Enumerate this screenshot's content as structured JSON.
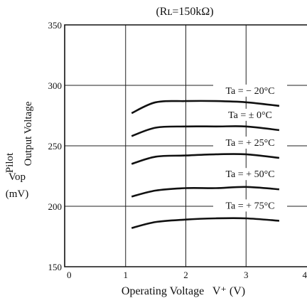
{
  "chart_data": {
    "type": "line",
    "title": "(Rʟ=150kΩ)",
    "xlabel": "Operating Voltage   V⁺ (V)",
    "ylabel_lines": [
      "Pilot",
      "Output Voltage",
      "Vop",
      "(mV)"
    ],
    "xlim": [
      0,
      4
    ],
    "ylim": [
      150,
      350
    ],
    "xticks": [
      "0",
      "1",
      "2",
      "3",
      "4"
    ],
    "yticks": [
      "150",
      "200",
      "250",
      "300",
      "350"
    ],
    "grid": true,
    "series": [
      {
        "name": "Ta = − 20°C",
        "x": [
          1.1,
          1.5,
          2.0,
          2.5,
          3.0,
          3.55
        ],
        "y": [
          277,
          286,
          287,
          287,
          286,
          283
        ]
      },
      {
        "name": "Ta = ± 0°C",
        "x": [
          1.1,
          1.5,
          2.0,
          2.5,
          3.0,
          3.55
        ],
        "y": [
          258,
          265,
          266,
          266,
          266,
          263
        ]
      },
      {
        "name": "Ta = + 25°C",
        "x": [
          1.1,
          1.5,
          2.0,
          2.5,
          3.0,
          3.55
        ],
        "y": [
          235,
          241,
          242,
          243,
          243,
          240
        ]
      },
      {
        "name": "Ta = + 50°C",
        "x": [
          1.1,
          1.5,
          2.0,
          2.5,
          3.0,
          3.55
        ],
        "y": [
          208,
          213,
          215,
          215,
          216,
          214
        ]
      },
      {
        "name": "Ta = + 75°C",
        "x": [
          1.1,
          1.5,
          2.0,
          2.5,
          3.0,
          3.55
        ],
        "y": [
          182,
          187,
          189,
          190,
          190,
          188
        ]
      }
    ]
  }
}
